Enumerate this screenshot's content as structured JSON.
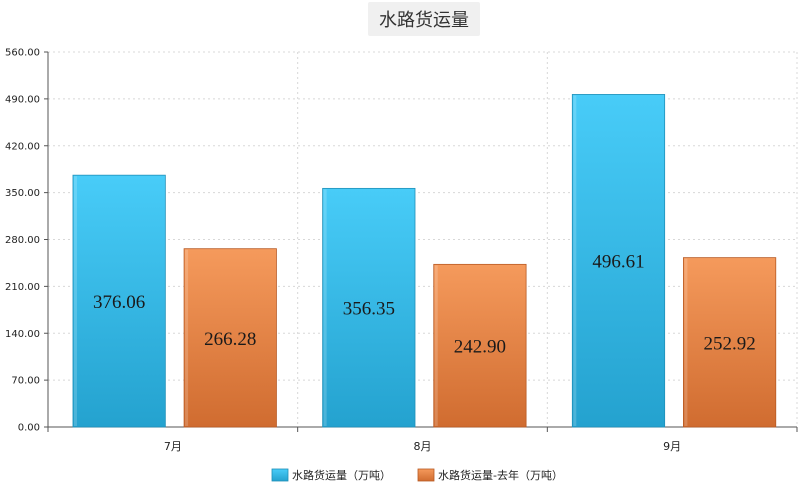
{
  "chart_data": {
    "type": "bar",
    "title": "水路货运量",
    "categories": [
      "7月",
      "8月",
      "9月"
    ],
    "series": [
      {
        "name": "水路货运量（万吨）",
        "values": [
          376.06,
          356.35,
          496.61
        ],
        "color": "#2eb8e8",
        "value_labels": [
          "376.06",
          "356.35",
          "496.61"
        ]
      },
      {
        "name": "水路货运量-去年（万吨）",
        "values": [
          266.28,
          242.9,
          252.92
        ],
        "color": "#ee8a4c",
        "value_labels": [
          "266.28",
          "242.90",
          "252.92"
        ]
      }
    ],
    "yticks": [
      "0.00",
      "70.00",
      "140.00",
      "210.00",
      "280.00",
      "350.00",
      "420.00",
      "490.00",
      "560.00"
    ],
    "ylim": [
      0,
      560
    ],
    "grid": true,
    "legend_position": "bottom"
  }
}
